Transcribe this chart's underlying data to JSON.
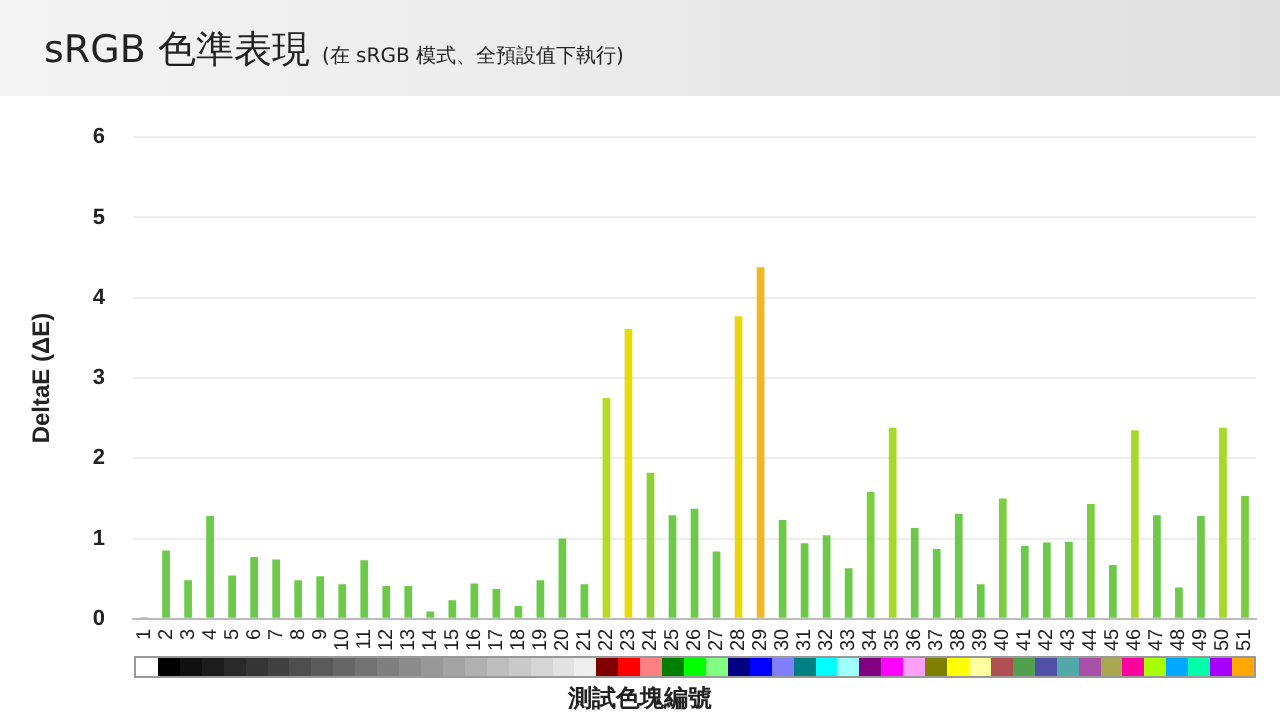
{
  "chart_data": {
    "type": "bar",
    "title": "sRGB 色準表現",
    "subtitle": "(在 sRGB 模式、全預設值下執行)",
    "xlabel": "測試色塊編號",
    "ylabel": "DeltaE (ΔE)",
    "categories": [
      "1",
      "2",
      "3",
      "4",
      "5",
      "6",
      "7",
      "8",
      "9",
      "10",
      "11",
      "12",
      "13",
      "14",
      "15",
      "16",
      "17",
      "18",
      "19",
      "20",
      "21",
      "22",
      "23",
      "24",
      "25",
      "26",
      "27",
      "28",
      "29",
      "30",
      "31",
      "32",
      "33",
      "34",
      "35",
      "36",
      "37",
      "38",
      "39",
      "40",
      "41",
      "42",
      "43",
      "44",
      "45",
      "46",
      "47",
      "48",
      "49",
      "50",
      "51"
    ],
    "values": [
      0.02,
      0.85,
      0.48,
      1.28,
      0.54,
      0.77,
      0.74,
      0.48,
      0.53,
      0.43,
      0.73,
      0.41,
      0.41,
      0.09,
      0.23,
      0.44,
      0.37,
      0.16,
      0.48,
      1.0,
      0.43,
      2.75,
      3.61,
      1.82,
      1.29,
      1.37,
      0.84,
      3.77,
      4.38,
      1.23,
      0.94,
      1.04,
      0.63,
      1.58,
      2.38,
      1.13,
      0.87,
      1.31,
      0.43,
      1.5,
      0.91,
      0.95,
      0.96,
      1.43,
      0.67,
      2.35,
      1.29,
      0.39,
      1.28,
      2.38,
      1.53
    ],
    "colors": [
      "#6cc94a",
      "#6cc94a",
      "#6cc94a",
      "#6cc94a",
      "#6cc94a",
      "#6cc94a",
      "#6cc94a",
      "#6cc94a",
      "#6cc94a",
      "#6cc94a",
      "#6cc94a",
      "#6cc94a",
      "#6cc94a",
      "#6cc94a",
      "#6cc94a",
      "#6cc94a",
      "#6cc94a",
      "#6cc94a",
      "#6cc94a",
      "#6cc94a",
      "#6cc94a",
      "#b8da22",
      "#e4dc10",
      "#8fd03a",
      "#6cc94a",
      "#6cc94a",
      "#6cc94a",
      "#e8d810",
      "#f2b824",
      "#6cc94a",
      "#6cc94a",
      "#6cc94a",
      "#6cc94a",
      "#7ccd42",
      "#a8d82a",
      "#6cc94a",
      "#6cc94a",
      "#6cc94a",
      "#6cc94a",
      "#7ccd42",
      "#6cc94a",
      "#6cc94a",
      "#6cc94a",
      "#7ccd42",
      "#6cc94a",
      "#a8d82a",
      "#6cc94a",
      "#6cc94a",
      "#6cc94a",
      "#a8d82a",
      "#7ccd42"
    ],
    "ylim": [
      0,
      6
    ],
    "yticks": [
      0,
      1,
      2,
      3,
      4,
      5,
      6
    ],
    "grid": "y"
  }
}
